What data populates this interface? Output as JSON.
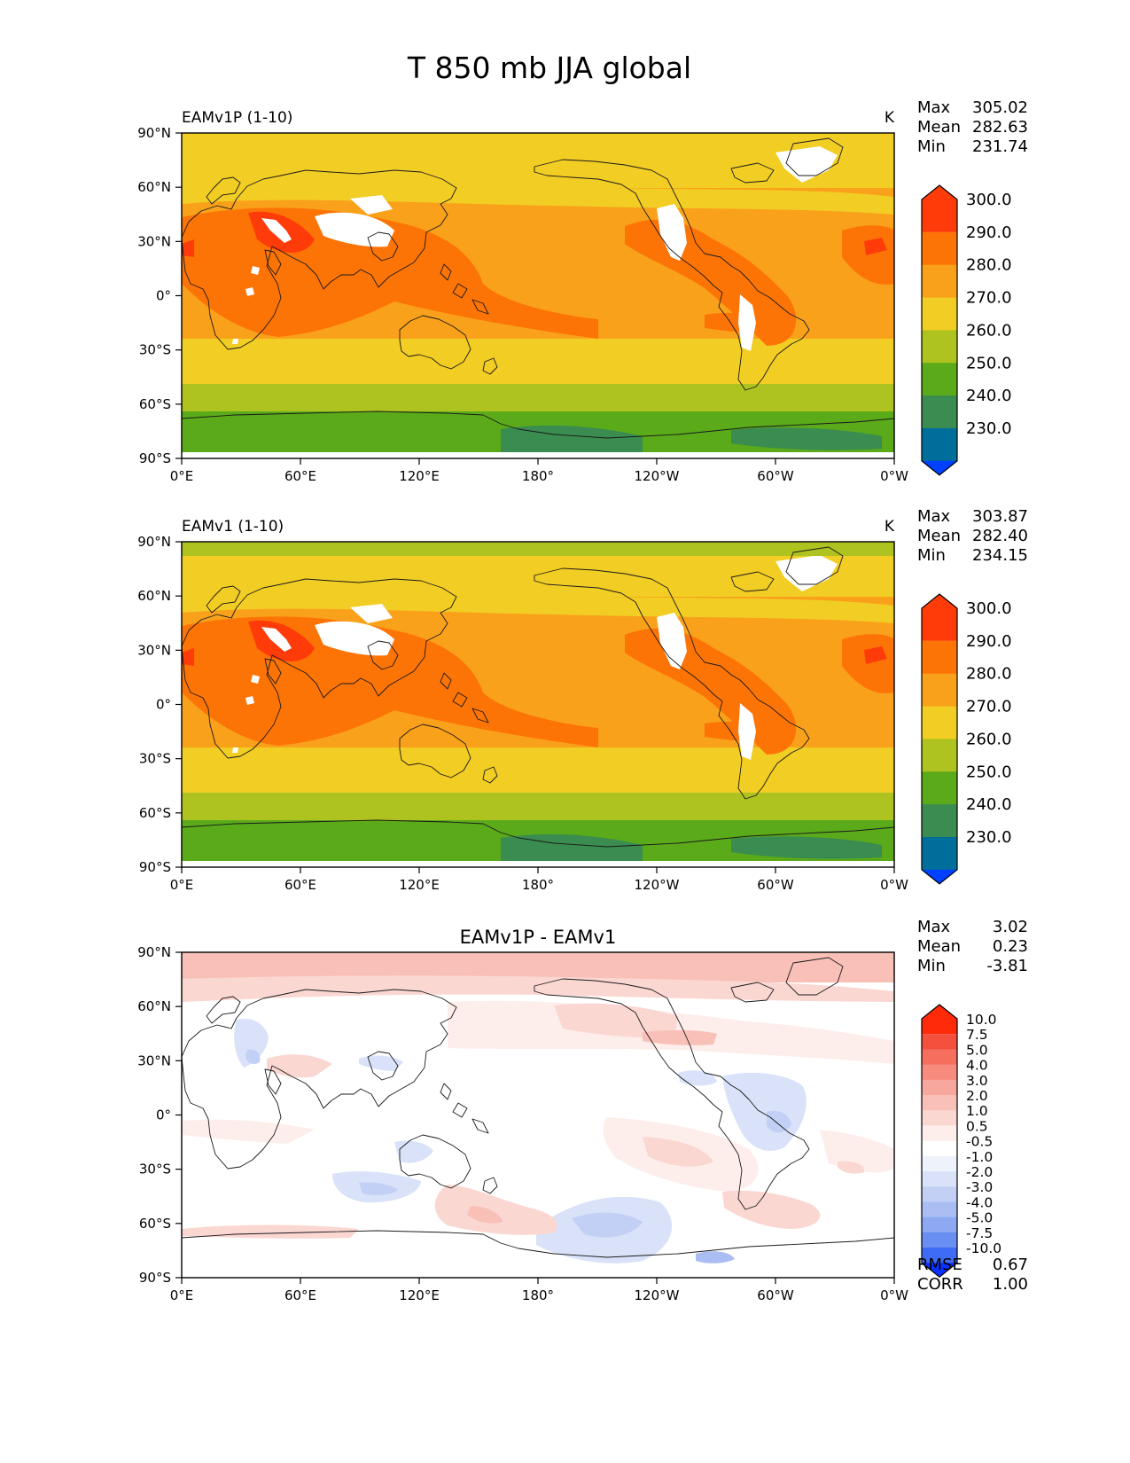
{
  "figure": {
    "title": "T 850 mb JJA global"
  },
  "chart_data": [
    {
      "type": "heatmap",
      "panel_label": "EAMv1P (1-10)",
      "center_title": "",
      "units": "K",
      "stats": [
        {
          "label": "Max",
          "value": "305.02"
        },
        {
          "label": "Mean",
          "value": "282.63"
        },
        {
          "label": "Min",
          "value": "231.74"
        }
      ],
      "lon_ticks": [
        "0°E",
        "60°E",
        "120°E",
        "180°",
        "120°W",
        "60°W",
        "0°W"
      ],
      "lat_ticks": [
        "90°N",
        "60°N",
        "30°N",
        "0°",
        "30°S",
        "60°S",
        "90°S"
      ],
      "xlim": [
        0,
        360
      ],
      "ylim": [
        -90,
        90
      ],
      "colorbar": {
        "colors": [
          "#0040ff",
          "#006e9a",
          "#3a8c50",
          "#5aaa1a",
          "#aec31f",
          "#f2cd24",
          "#f9a11a",
          "#fd7406",
          "#ff3b0a"
        ],
        "labels": [
          "230.0",
          "240.0",
          "250.0",
          "260.0",
          "270.0",
          "280.0",
          "290.0",
          "300.0"
        ]
      }
    },
    {
      "type": "heatmap",
      "panel_label": "EAMv1 (1-10)",
      "center_title": "",
      "units": "K",
      "stats": [
        {
          "label": "Max",
          "value": "303.87"
        },
        {
          "label": "Mean",
          "value": "282.40"
        },
        {
          "label": "Min",
          "value": "234.15"
        }
      ],
      "lon_ticks": [
        "0°E",
        "60°E",
        "120°E",
        "180°",
        "120°W",
        "60°W",
        "0°W"
      ],
      "lat_ticks": [
        "90°N",
        "60°N",
        "30°N",
        "0°",
        "30°S",
        "60°S",
        "90°S"
      ],
      "xlim": [
        0,
        360
      ],
      "ylim": [
        -90,
        90
      ],
      "colorbar": {
        "colors": [
          "#0040ff",
          "#006e9a",
          "#3a8c50",
          "#5aaa1a",
          "#aec31f",
          "#f2cd24",
          "#f9a11a",
          "#fd7406",
          "#ff3b0a"
        ],
        "labels": [
          "230.0",
          "240.0",
          "250.0",
          "260.0",
          "270.0",
          "280.0",
          "290.0",
          "300.0"
        ]
      }
    },
    {
      "type": "heatmap",
      "panel_label": "",
      "center_title": "EAMv1P - EAMv1",
      "units": "",
      "stats": [
        {
          "label": "Max",
          "value": "3.02"
        },
        {
          "label": "Mean",
          "value": "0.23"
        },
        {
          "label": "Min",
          "value": "-3.81"
        }
      ],
      "bottom_stats": [
        {
          "label": "RMSE",
          "value": "0.67"
        },
        {
          "label": "CORR",
          "value": "1.00"
        }
      ],
      "lon_ticks": [
        "0°E",
        "60°E",
        "120°E",
        "180°",
        "120°W",
        "60°W",
        "0°W"
      ],
      "lat_ticks": [
        "90°N",
        "60°N",
        "30°N",
        "0°",
        "30°S",
        "60°S",
        "90°S"
      ],
      "xlim": [
        0,
        360
      ],
      "ylim": [
        -90,
        90
      ],
      "colorbar": {
        "colors": [
          "#0b30ff",
          "#3f6cf6",
          "#6a8ff2",
          "#8ea9f2",
          "#aabef3",
          "#c2d0f5",
          "#d9e2f8",
          "#eef2fb",
          "#ffffff",
          "#fdeeec",
          "#fbd7d2",
          "#f9c0b8",
          "#f7a79d",
          "#f68b7e",
          "#f56e5e",
          "#f4503d",
          "#ff2a0a"
        ],
        "labels": [
          "-10.0",
          "-7.5",
          "-5.0",
          "-4.0",
          "-3.0",
          "-2.0",
          "-1.0",
          "-0.5",
          "0.5",
          "1.0",
          "2.0",
          "3.0",
          "4.0",
          "5.0",
          "7.5",
          "10.0"
        ]
      }
    }
  ]
}
